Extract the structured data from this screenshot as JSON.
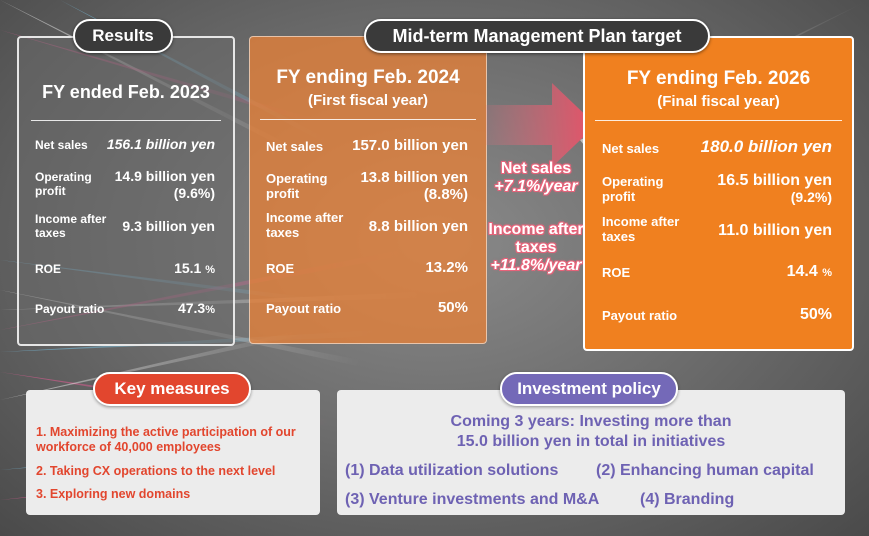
{
  "results": {
    "badge": "Results",
    "title": "FY ended Feb. 2023",
    "rows": [
      {
        "label": "Net sales",
        "value": "156.1 billion yen"
      },
      {
        "label": "Operating profit",
        "value": "14.9 billion yen",
        "sub": "(9.6%)"
      },
      {
        "label": "Income after taxes",
        "value": "9.3 billion yen"
      },
      {
        "label": "ROE",
        "value": "15.1",
        "unit": "%"
      },
      {
        "label": "Payout ratio",
        "value": "47.3",
        "unit": "%"
      }
    ]
  },
  "midterm": {
    "badge": "Mid-term Management Plan target"
  },
  "fy2024": {
    "title": "FY ending Feb. 2024",
    "subtitle": "(First fiscal year)",
    "rows": [
      {
        "label": "Net sales",
        "value": "157.0 billion yen"
      },
      {
        "label": "Operating profit",
        "value": "13.8 billion yen",
        "sub": "(8.8%)"
      },
      {
        "label": "Income after taxes",
        "value": "8.8 billion yen"
      },
      {
        "label": "ROE",
        "value": "13.2%"
      },
      {
        "label": "Payout ratio",
        "value": "50%"
      }
    ]
  },
  "growth": {
    "net_sales_label": "Net sales",
    "net_sales_rate": "+7.1%/year",
    "income_label_1": "Income after",
    "income_label_2": "taxes",
    "income_rate": "+11.8%/year"
  },
  "fy2026": {
    "title": "FY ending Feb. 2026",
    "subtitle": "(Final fiscal year)",
    "rows": [
      {
        "label": "Net sales",
        "value": "180.0 billion yen"
      },
      {
        "label": "Operating profit",
        "value": "16.5 billion yen",
        "sub": "(9.2%)"
      },
      {
        "label": "Income after taxes",
        "value": "11.0 billion yen"
      },
      {
        "label": "ROE",
        "value": "14.4",
        "unit": "%"
      },
      {
        "label": "Payout ratio",
        "value": "50%"
      }
    ]
  },
  "key_measures": {
    "badge": "Key measures",
    "items": [
      "1. Maximizing the active participation of our workforce of 40,000 employees",
      "2. Taking CX operations to the next level",
      "3. Exploring new domains"
    ]
  },
  "investment": {
    "badge": "Investment policy",
    "lead_1": "Coming 3 years: Investing more than",
    "lead_2": "15.0 billion yen in total in initiatives",
    "items": [
      "(1) Data utilization solutions",
      "(2) Enhancing human capital",
      "(3) Venture investments and M&A",
      "(4) Branding"
    ]
  },
  "colors": {
    "orange_final": "#f0801f",
    "orange_first": "#e58038",
    "red_accent": "#e2462e",
    "purple_accent": "#7469b8",
    "growth_pink": "#e8637a"
  }
}
